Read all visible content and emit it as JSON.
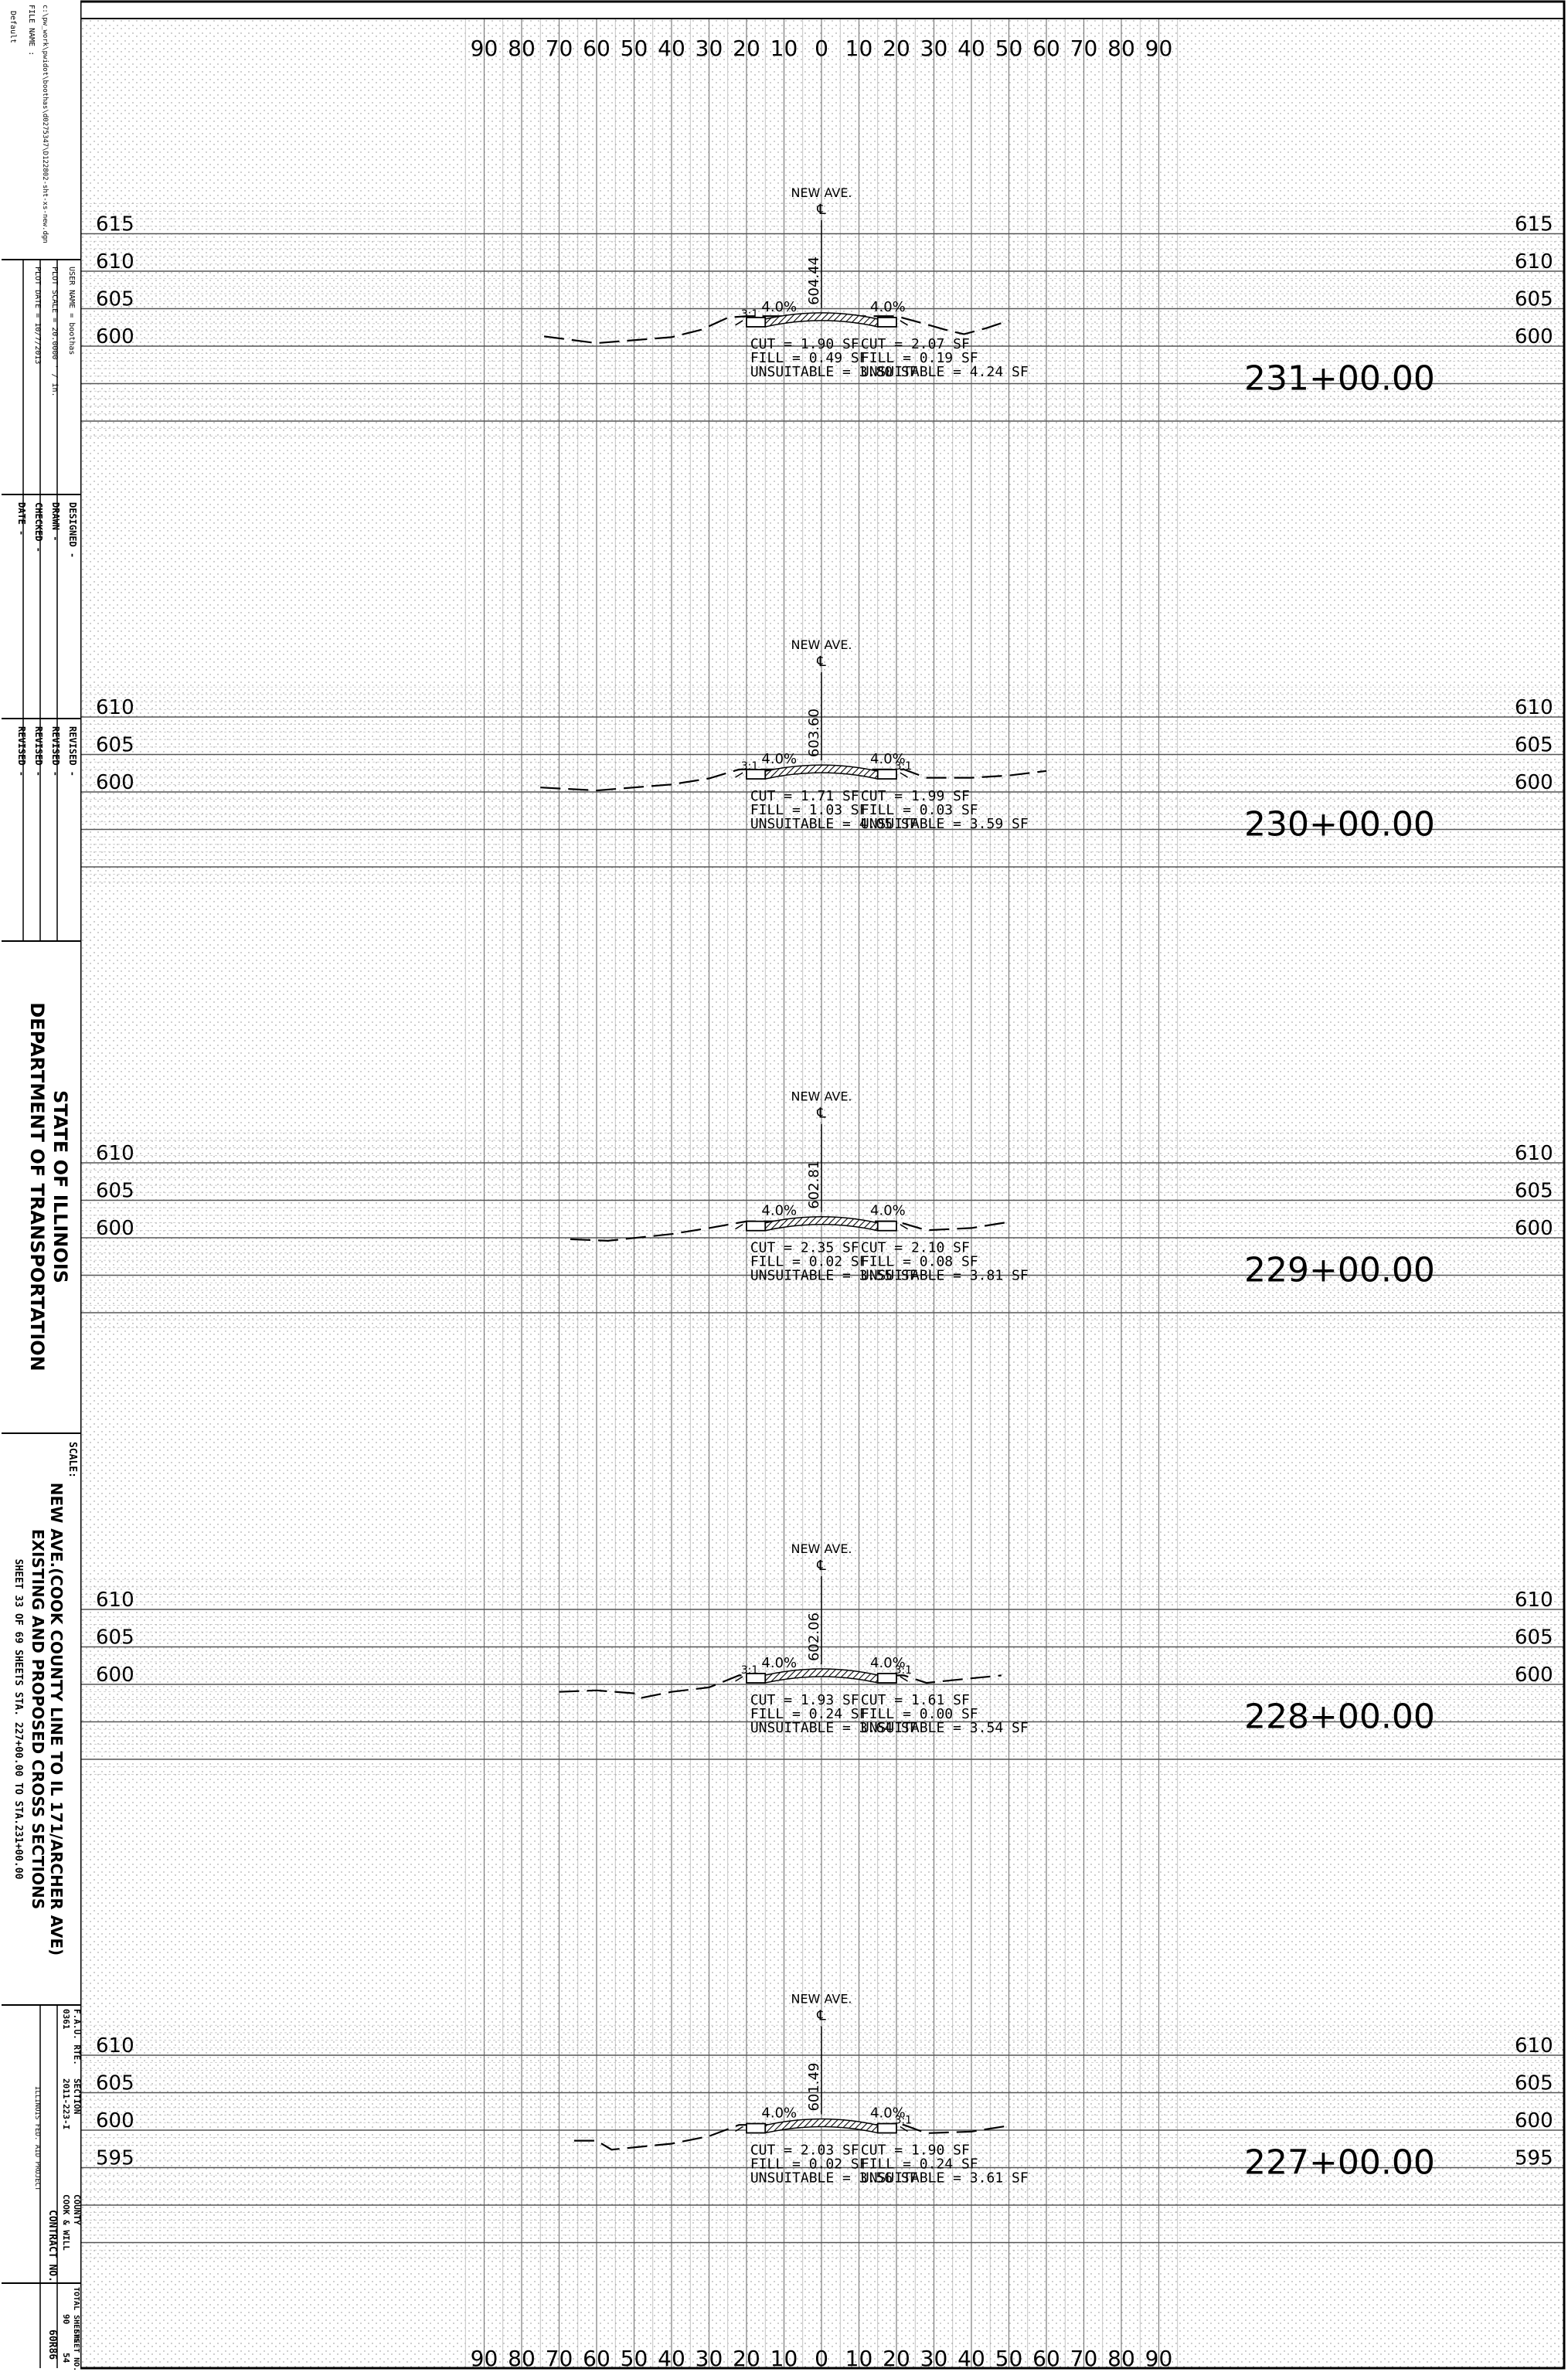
{
  "title_block": {
    "file_label": "FILE NAME :",
    "file_name": "c:\\pw_work\\pwidot\\boothas\\d0275347\\D122802-sht-xs-new.dgn",
    "default_label": "Default",
    "user_name": "USER NAME = boothas",
    "plot_scale": "PLOT SCALE = 20.0000 ' / in.",
    "plot_date": "PLOT DATE = 10/7/2013",
    "designed": "DESIGNED  -",
    "drawn": "DRAWN  -",
    "checked": "CHECKED  -",
    "date": "DATE  -",
    "revised": [
      "REVISED  -",
      "REVISED  -",
      "REVISED  -",
      "REVISED  -"
    ],
    "agency_line1": "STATE OF ILLINOIS",
    "agency_line2": "DEPARTMENT OF TRANSPORTATION",
    "scale_label": "SCALE:",
    "project_title1": "NEW AVE.(COOK COUNTY LINE TO IL 171/ARCHER AVE)",
    "project_title2": "EXISTING AND PROPOSED CROSS SECTIONS",
    "sheet_info": "SHEET  33  OF  69  SHEETS   STA. 227+00.00   TO STA.231+00.00",
    "far_label": "F.A.U. RTE.",
    "far_value": "0361",
    "section_label": "SECTION",
    "section_value": "2011-223-I",
    "county_label": "COUNTY",
    "county_value": "COOK & WILL",
    "total_sheets_label": "TOTAL SHEETS",
    "total_sheets_value": "90",
    "sheet_no_label": "SHEET NO.",
    "sheet_no_value": "54",
    "contract_label": "CONTRACT NO.",
    "contract_value": "60R86",
    "fed_aid": "ILLINOIS FED. AID PROJECT"
  },
  "offset_labels": [
    "90",
    "80",
    "70",
    "60",
    "50",
    "40",
    "30",
    "20",
    "10",
    "0",
    "10",
    "20",
    "30",
    "40",
    "50",
    "60",
    "70",
    "80",
    "90"
  ],
  "sections": [
    {
      "station": "231+00.00",
      "road": "NEW AVE.",
      "cl_symbol": "℄",
      "center_elev": "604.44",
      "elev_labels": [
        "615",
        "610",
        "605",
        "600"
      ],
      "slope_left": "4.0%",
      "slope_right": "4.0%",
      "ratio_left": "3:1",
      "ratio_right": "",
      "left_qty": [
        "CUT = 1.90 SF",
        "FILL = 0.49 SF",
        "UNSUITABLE = 3.80 SF"
      ],
      "right_qty": [
        "CUT = 2.07 SF",
        "FILL = 0.19 SF",
        "UNSUITABLE = 4.24 SF"
      ],
      "ground": [
        [
          -74,
          601.3
        ],
        [
          -60,
          600.4
        ],
        [
          -40,
          601.2
        ],
        [
          -32,
          602.2
        ],
        [
          -25,
          603.8
        ],
        [
          -20,
          604.0
        ],
        [
          20,
          604.0
        ],
        [
          26,
          603.2
        ],
        [
          33,
          602.2
        ],
        [
          38,
          601.6
        ],
        [
          44,
          602.4
        ],
        [
          50,
          603.4
        ]
      ]
    },
    {
      "station": "230+00.00",
      "road": "NEW AVE.",
      "cl_symbol": "℄",
      "center_elev": "603.60",
      "elev_labels": [
        "610",
        "605",
        "600"
      ],
      "slope_left": "4.0%",
      "slope_right": "4.0%",
      "ratio_left": "3:1",
      "ratio_right": "3:1",
      "left_qty": [
        "CUT = 1.71 SF",
        "FILL = 1.03 SF",
        "UNSUITABLE = 4.05 SF"
      ],
      "right_qty": [
        "CUT = 1.99 SF",
        "FILL = 0.03 SF",
        "UNSUITABLE = 3.59 SF"
      ],
      "ground": [
        [
          -75,
          600.6
        ],
        [
          -60,
          600.2
        ],
        [
          -40,
          601.0
        ],
        [
          -30,
          601.8
        ],
        [
          -22,
          603.0
        ],
        [
          22,
          603.0
        ],
        [
          28,
          601.9
        ],
        [
          40,
          601.9
        ],
        [
          50,
          602.2
        ],
        [
          60,
          602.8
        ]
      ]
    },
    {
      "station": "229+00.00",
      "road": "NEW AVE.",
      "cl_symbol": "℄",
      "center_elev": "602.81",
      "elev_labels": [
        "610",
        "605",
        "600"
      ],
      "slope_left": "4.0%",
      "slope_right": "4.0%",
      "ratio_left": "",
      "ratio_right": "",
      "left_qty": [
        "CUT = 2.35 SF",
        "FILL = 0.02 SF",
        "UNSUITABLE = 3.55 SF"
      ],
      "right_qty": [
        "CUT = 2.10 SF",
        "FILL = 0.08 SF",
        "UNSUITABLE = 3.81 SF"
      ],
      "ground": [
        [
          -67,
          599.8
        ],
        [
          -57,
          599.6
        ],
        [
          -40,
          600.5
        ],
        [
          -30,
          601.3
        ],
        [
          -20,
          602.2
        ],
        [
          20,
          602.2
        ],
        [
          28,
          601.0
        ],
        [
          40,
          601.3
        ],
        [
          50,
          602.1
        ]
      ]
    },
    {
      "station": "228+00.00",
      "road": "NEW AVE.",
      "cl_symbol": "℄",
      "center_elev": "602.06",
      "elev_labels": [
        "610",
        "605",
        "600"
      ],
      "slope_left": "4.0%",
      "slope_right": "4.0%",
      "ratio_left": "3:1",
      "ratio_right": "3:1",
      "left_qty": [
        "CUT = 1.93 SF",
        "FILL = 0.24 SF",
        "UNSUITABLE = 3.64 SF"
      ],
      "right_qty": [
        "CUT = 1.61 SF",
        "FILL = 0.00 SF",
        "UNSUITABLE = 3.54 SF"
      ],
      "ground": [
        [
          -70,
          599.0
        ],
        [
          -60,
          599.2
        ],
        [
          -50,
          598.8
        ],
        [
          -48,
          598.2
        ],
        [
          -40,
          599.0
        ],
        [
          -30,
          599.6
        ],
        [
          -22,
          601.2
        ],
        [
          22,
          601.2
        ],
        [
          28,
          600.2
        ],
        [
          40,
          600.8
        ],
        [
          48,
          601.2
        ]
      ]
    },
    {
      "station": "227+00.00",
      "road": "NEW AVE.",
      "cl_symbol": "℄",
      "center_elev": "601.49",
      "elev_labels": [
        "610",
        "605",
        "600",
        "595"
      ],
      "slope_left": "4.0%",
      "slope_right": "4.0%",
      "ratio_left": "",
      "ratio_right": "3:1",
      "left_qty": [
        "CUT = 2.03 SF",
        "FILL = 0.02 SF",
        "UNSUITABLE = 3.56 SF"
      ],
      "right_qty": [
        "CUT = 1.90 SF",
        "FILL = 0.24 SF",
        "UNSUITABLE = 3.61 SF"
      ],
      "ground": [
        [
          -66,
          598.6
        ],
        [
          -60,
          598.6
        ],
        [
          -56,
          597.4
        ],
        [
          -40,
          598.2
        ],
        [
          -30,
          599.2
        ],
        [
          -22,
          600.7
        ],
        [
          22,
          600.7
        ],
        [
          28,
          599.6
        ],
        [
          40,
          599.8
        ],
        [
          50,
          600.6
        ]
      ]
    }
  ]
}
